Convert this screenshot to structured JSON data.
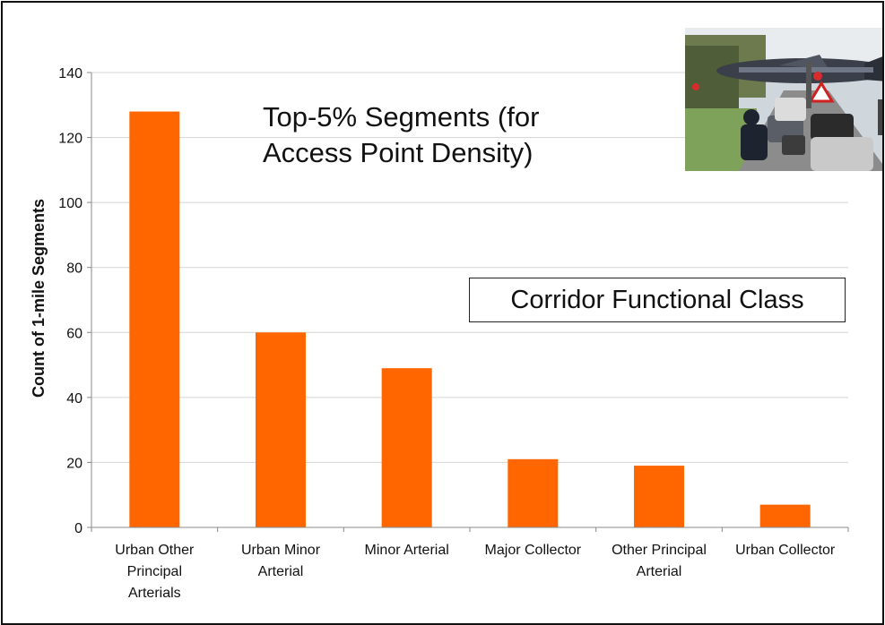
{
  "chart_data": {
    "type": "bar",
    "title": "Top-5% Segments (for Access Point Density)",
    "legend_label": "Corridor Functional Class",
    "xlabel": "",
    "ylabel": "Count of 1-mile Segments",
    "ylim": [
      0,
      140
    ],
    "yticks": [
      "0",
      "20",
      "40",
      "60",
      "80",
      "100",
      "120",
      "140"
    ],
    "grid": true,
    "categories": [
      "Urban Other Principal Arterials",
      "Urban Minor Arterial",
      "Minor Arterial",
      "Major Collector",
      "Other Principal Arterial",
      "Urban Collector"
    ],
    "category_lines": [
      [
        "Urban Other",
        "Principal",
        "Arterials"
      ],
      [
        "Urban Minor",
        "Arterial"
      ],
      [
        "Minor Arterial"
      ],
      [
        "Major Collector"
      ],
      [
        "Other Principal",
        "Arterial"
      ],
      [
        "Urban Collector"
      ]
    ],
    "values": [
      128,
      60,
      49,
      21,
      19,
      7
    ],
    "bar_color": "#ff6600",
    "grid_color": "#d4d4d4"
  },
  "photo": {
    "icon": "traffic-photo-icon"
  }
}
